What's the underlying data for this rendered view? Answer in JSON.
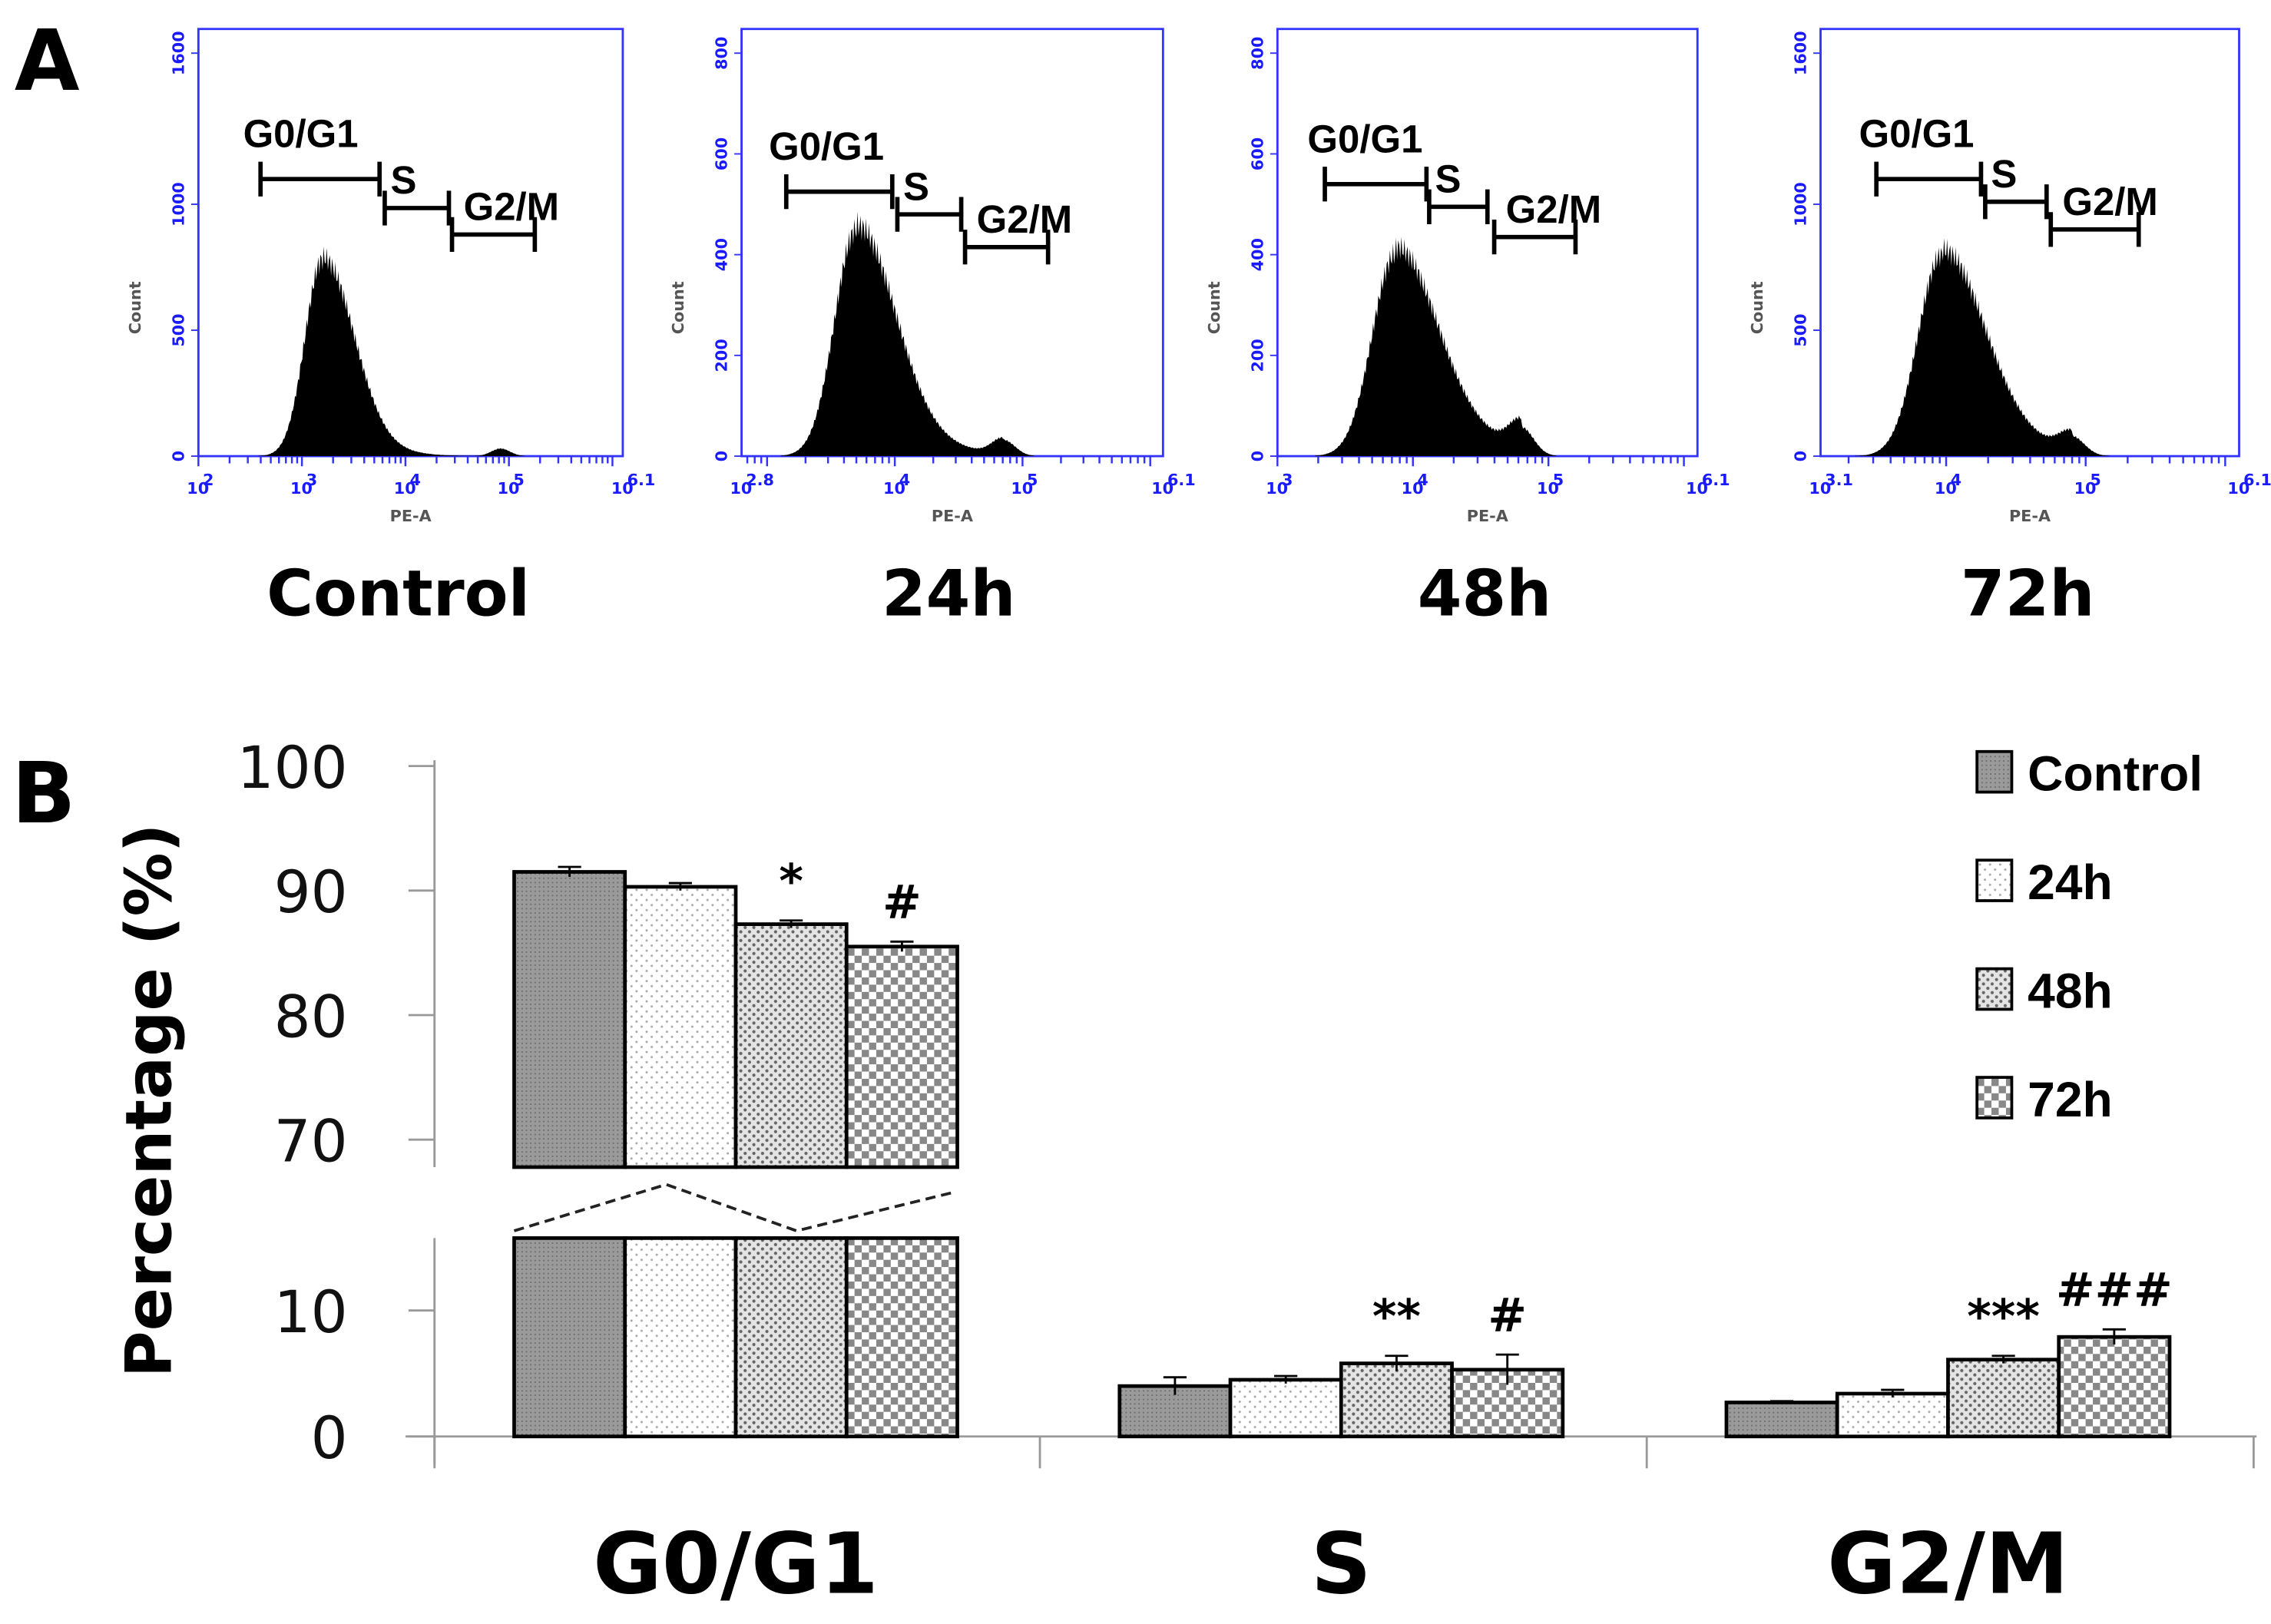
{
  "panel_labels": {
    "a": "A",
    "b": "B"
  },
  "chart_data": [
    {
      "type": "histogram",
      "panel": "A",
      "xlabel": "PE-A",
      "ylabel": "Count",
      "x_scale": "log10",
      "tick_base": "10",
      "plots": [
        {
          "title": "Control",
          "xlim_log": [
            2,
            6.1
          ],
          "x_tick_exponents": [
            "2",
            "3",
            "4",
            "5",
            "6.1"
          ],
          "ylim": [
            0,
            1600
          ],
          "y_ticks": [
            "0",
            "500",
            "1000",
            "1600"
          ],
          "y_tick_values": [
            0,
            500,
            1000,
            1600
          ],
          "g1_peak_log": 3.2,
          "g1_peak_count": 780,
          "g2_peak_log": 4.92,
          "g2_peak_count": 30,
          "gates": [
            {
              "label": "G0/G1",
              "from": 2.6,
              "to": 3.75,
              "count": 1100
            },
            {
              "label": "S",
              "from": 3.8,
              "to": 4.42,
              "count": 985
            },
            {
              "label": "G2/M",
              "from": 4.45,
              "to": 5.25,
              "count": 880
            }
          ]
        },
        {
          "title": "24h",
          "xlim_log": [
            2.8,
            6.1
          ],
          "x_tick_exponents": [
            "2.8",
            "4",
            "5",
            "6.1"
          ],
          "ylim": [
            0,
            800
          ],
          "y_ticks": [
            "0",
            "200",
            "400",
            "600",
            "800"
          ],
          "y_tick_values": [
            0,
            200,
            400,
            600,
            800
          ],
          "g1_peak_log": 3.7,
          "g1_peak_count": 450,
          "g2_peak_log": 4.85,
          "g2_peak_count": 32,
          "gates": [
            {
              "label": "G0/G1",
              "from": 3.15,
              "to": 3.98,
              "count": 525
            },
            {
              "label": "S",
              "from": 4.02,
              "to": 4.52,
              "count": 480
            },
            {
              "label": "G2/M",
              "from": 4.55,
              "to": 5.2,
              "count": 415
            }
          ]
        },
        {
          "title": "48h",
          "xlim_log": [
            3,
            6.1
          ],
          "x_tick_exponents": [
            "3",
            "4",
            "5",
            "6.1"
          ],
          "ylim": [
            0,
            800
          ],
          "y_ticks": [
            "0",
            "200",
            "400",
            "600",
            "800"
          ],
          "y_tick_values": [
            0,
            200,
            400,
            600,
            800
          ],
          "g1_peak_log": 3.87,
          "g1_peak_count": 400,
          "g2_peak_log": 4.8,
          "g2_peak_count": 55,
          "gates": [
            {
              "label": "G0/G1",
              "from": 3.35,
              "to": 4.1,
              "count": 540
            },
            {
              "label": "S",
              "from": 4.12,
              "to": 4.55,
              "count": 495
            },
            {
              "label": "G2/M",
              "from": 4.6,
              "to": 5.2,
              "count": 435
            }
          ]
        },
        {
          "title": "72h",
          "xlim_log": [
            3.1,
            6.1
          ],
          "x_tick_exponents": [
            "3.1",
            "4",
            "5",
            "6.1"
          ],
          "ylim": [
            0,
            1600
          ],
          "y_ticks": [
            "0",
            "500",
            "1000",
            "1600"
          ],
          "y_tick_values": [
            0,
            500,
            1000,
            1600
          ],
          "g1_peak_log": 3.97,
          "g1_peak_count": 800,
          "g2_peak_log": 4.9,
          "g2_peak_count": 75,
          "gates": [
            {
              "label": "G0/G1",
              "from": 3.5,
              "to": 4.25,
              "count": 1100
            },
            {
              "label": "S",
              "from": 4.28,
              "to": 4.72,
              "count": 1010
            },
            {
              "label": "G2/M",
              "from": 4.75,
              "to": 5.38,
              "count": 900
            }
          ]
        }
      ]
    },
    {
      "type": "bar",
      "panel": "B",
      "ylabel": "Percentage (%)",
      "categories": [
        "G0/G1",
        "S",
        "G2/M"
      ],
      "y_ticks_upper": [
        "70",
        "80",
        "90",
        "100"
      ],
      "y_ticks_lower": [
        "0",
        "10"
      ],
      "y_axis_break": [
        15,
        68
      ],
      "series": [
        {
          "name": "Control",
          "values": [
            91.5,
            4.0,
            2.7
          ],
          "errors": [
            0.4,
            0.7,
            0.1
          ],
          "color": "#8c8c8c",
          "pattern": "fine-dots-dark"
        },
        {
          "name": "24h",
          "values": [
            90.3,
            4.5,
            3.4
          ],
          "errors": [
            0.3,
            0.3,
            0.3
          ],
          "color": "#ffffff",
          "pattern": "sparse-dots"
        },
        {
          "name": "48h",
          "values": [
            87.3,
            5.8,
            6.1
          ],
          "errors": [
            0.3,
            0.6,
            0.3
          ],
          "color": "#d0d0d0",
          "pattern": "dense-dots"
        },
        {
          "name": "72h",
          "values": [
            85.5,
            5.3,
            7.9
          ],
          "errors": [
            0.4,
            1.2,
            0.6
          ],
          "color": "#b0b0b0",
          "pattern": "checker"
        }
      ],
      "annotations": [
        {
          "category": 0,
          "series": 2,
          "text": "*"
        },
        {
          "category": 0,
          "series": 3,
          "text": "#"
        },
        {
          "category": 1,
          "series": 2,
          "text": "**"
        },
        {
          "category": 1,
          "series": 3,
          "text": "#"
        },
        {
          "category": 2,
          "series": 2,
          "text": "***"
        },
        {
          "category": 2,
          "series": 3,
          "text": "###"
        }
      ],
      "legend_position": "top-right"
    }
  ]
}
